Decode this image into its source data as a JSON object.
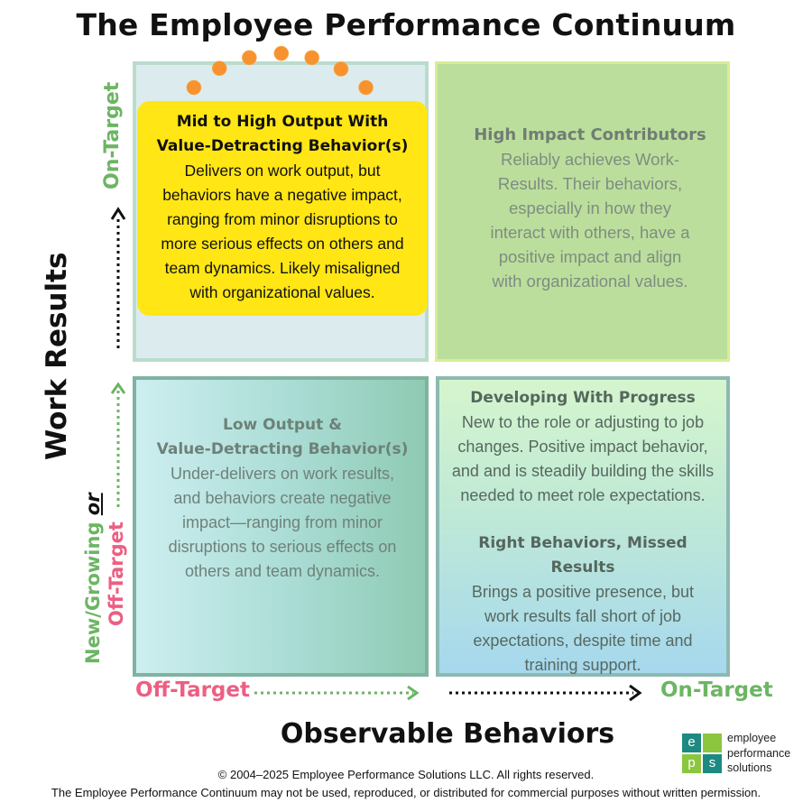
{
  "title": "The Employee Performance Continuum",
  "quadrants": {
    "top_left": {
      "title_lines": [
        "Mid to High Output With",
        "Value-Detracting Behavior(s)"
      ],
      "body_lines": [
        "Delivers on work output, but",
        "behaviors have a negative impact,",
        "ranging from minor disruptions to",
        "more serious effects on others and",
        "team dynamics. Likely misaligned",
        "with organizational values."
      ]
    },
    "top_right": {
      "title": "High Impact Contributors",
      "body_lines": [
        "Reliably achieves Work-",
        "Results.  Their behaviors,",
        "especially in how they",
        "interact with others, have a",
        "positive impact and align",
        "with organizational values."
      ]
    },
    "bottom_left": {
      "title_lines": [
        "Low Output &",
        "Value-Detracting  Behavior(s)"
      ],
      "body_lines": [
        "Under-delivers on work results,",
        "and behaviors create negative",
        "impact—ranging from minor",
        "disruptions to serious effects on",
        "others and team dynamics."
      ]
    },
    "bottom_right": {
      "section1": {
        "title": "Developing With Progress",
        "body_lines": [
          "New to the role or adjusting to job",
          "changes. Positive impact behavior,",
          "and and is steadily building the skills",
          "needed to meet role expectations."
        ]
      },
      "section2": {
        "title_lines": [
          "Right Behaviors, Missed",
          "Results"
        ],
        "body_lines": [
          "Brings a positive presence, but",
          "work results fall short of job",
          "expectations, despite time and",
          "training support."
        ]
      }
    }
  },
  "x_axis": {
    "left_label": "Off-Target",
    "right_label": "On-Target",
    "title": "Observable Behaviors"
  },
  "y_axis": {
    "top_label": "On-Target",
    "title": "Work Results",
    "bottom_label_1": "New/Growing",
    "bottom_label_or": "or",
    "bottom_label_2": "Off-Target"
  },
  "footer": {
    "copyright": "© 2004–2025 Employee Performance Solutions LLC. All rights reserved.",
    "notice": "The Employee Performance Continuum may not be used, reproduced, or distributed for commercial purposes without written permission."
  },
  "logo": {
    "letters": [
      "e",
      "p",
      "s"
    ],
    "text_lines": [
      "employee",
      "performance",
      "solutions"
    ]
  },
  "colors": {
    "green": "#6cb564",
    "pink": "#ec5f82",
    "highlight_yellow": "#ffe614",
    "burst_dot": "#f7922e",
    "logo_teal": "#1d8a82",
    "logo_green": "#8cc63f"
  }
}
